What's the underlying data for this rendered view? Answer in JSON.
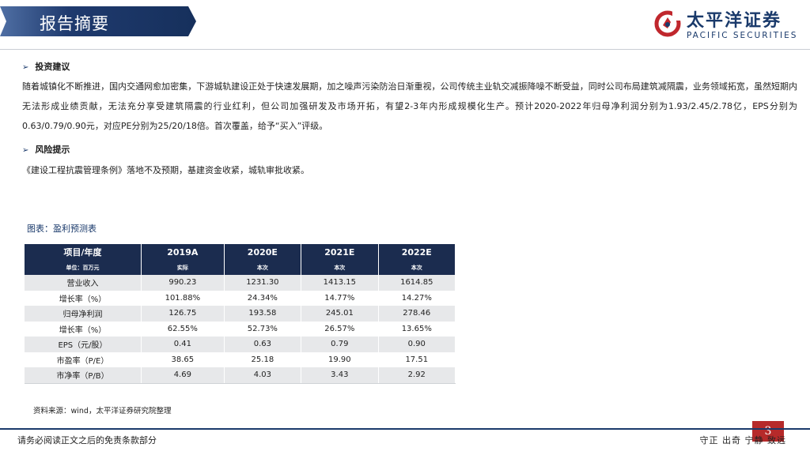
{
  "header": {
    "title": "报告摘要",
    "logo_cn": "太平洋证券",
    "logo_en": "PACIFIC SECURITIES"
  },
  "sections": {
    "invest_heading": "投资建议",
    "invest_text": "随着城镇化不断推进，国内交通网愈加密集，下游城轨建设正处于快速发展期，加之噪声污染防治日渐重视，公司传统主业轨交减振降噪不断受益，同时公司布局建筑减隔震，业务领域拓宽，虽然短期内无法形成业绩贡献，无法充分享受建筑隔震的行业红利，但公司加强研发及市场开拓，有望2-3年内形成规模化生产。预计2020-2022年归母净利润分别为1.93/2.45/2.78亿，EPS分别为0.63/0.79/0.90元，对应PE分别为25/20/18倍。首次覆盖，给予“买入”评级。",
    "risk_heading": "风险提示",
    "risk_text": "《建设工程抗震管理条例》落地不及预期，基建资金收紧，城轨审批收紧。"
  },
  "table": {
    "caption": "图表：盈利预测表",
    "header": [
      "项目/年度",
      "2019A",
      "2020E",
      "2021E",
      "2022E"
    ],
    "subheader": [
      "单位：百万元",
      "实际",
      "本次",
      "本次",
      "本次"
    ],
    "rows": [
      [
        "营业收入",
        "990.23",
        "1231.30",
        "1413.15",
        "1614.85"
      ],
      [
        "增长率（%）",
        "101.88%",
        "24.34%",
        "14.77%",
        "14.27%"
      ],
      [
        "归母净利润",
        "126.75",
        "193.58",
        "245.01",
        "278.46"
      ],
      [
        "增长率（%）",
        "62.55%",
        "52.73%",
        "26.57%",
        "13.65%"
      ],
      [
        "EPS（元/股）",
        "0.41",
        "0.63",
        "0.79",
        "0.90"
      ],
      [
        "市盈率（P/E）",
        "38.65",
        "25.18",
        "19.90",
        "17.51"
      ],
      [
        "市净率（P/B）",
        "4.69",
        "4.03",
        "3.43",
        "2.92"
      ]
    ],
    "source": "资料来源：wind，太平洋证券研究院整理"
  },
  "footer": {
    "disclaimer": "请务必阅读正文之后的免责条款部分",
    "motto": "守正 出奇 宁静 致远",
    "page_number": "3"
  },
  "colors": {
    "navy": "#1b2c4f",
    "brand_blue": "#1a3a6b",
    "page_red": "#b62a2a",
    "row_grey": "#e7e8ea"
  },
  "icons": {
    "bullet": "arrow-right-icon",
    "logo": "pacific-securities-logo-icon"
  }
}
